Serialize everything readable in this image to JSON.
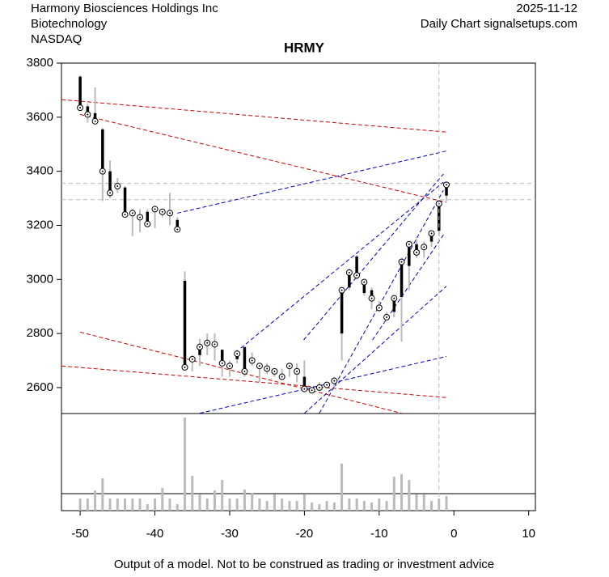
{
  "chart_data": {
    "type": "ohlc",
    "title": "HRMY",
    "company": "Harmony Biosciences Holdings Inc",
    "sector": "Biotechnology",
    "exchange": "NASDAQ",
    "date": "2025-11-12",
    "source": "Daily Chart signalsetups.com",
    "footer": "Output of a model. Not to be construed as trading or investment advice",
    "x": [
      -50,
      -49,
      -48,
      -47,
      -46,
      -45,
      -44,
      -43,
      -42,
      -41,
      -40,
      -39,
      -38,
      -37,
      -36,
      -35,
      -34,
      -33,
      -32,
      -31,
      -30,
      -29,
      -28,
      -27,
      -26,
      -25,
      -24,
      -23,
      -22,
      -21,
      -20,
      -19,
      -18,
      -17,
      -16,
      -15,
      -14,
      -13,
      -12,
      -11,
      -10,
      -9,
      -8,
      -7,
      -6,
      -5,
      -4,
      -3,
      -2,
      -1
    ],
    "open": [
      3750,
      3640,
      3615,
      3555,
      3400,
      3345,
      3340,
      3250,
      3240,
      3250,
      3260,
      3250,
      3245,
      3220,
      2995,
      2700,
      2720,
      2770,
      2760,
      2740,
      2680,
      2705,
      2750,
      2700,
      2680,
      2670,
      2660,
      2640,
      2680,
      2660,
      2640,
      2590,
      2600,
      2610,
      2620,
      2800,
      2970,
      3085,
      2950,
      2960,
      2895,
      2860,
      2880,
      2935,
      3050,
      3130,
      3130,
      3140,
      3180,
      3310
    ],
    "high": [
      3755,
      3650,
      3710,
      3560,
      3440,
      3375,
      3345,
      3260,
      3260,
      3260,
      3270,
      3260,
      3320,
      3230,
      3030,
      2720,
      2780,
      2800,
      2800,
      2740,
      2700,
      2740,
      2750,
      2730,
      2690,
      2690,
      2670,
      2670,
      2690,
      2690,
      2700,
      2600,
      2620,
      2620,
      2640,
      2960,
      3040,
      3090,
      3000,
      2970,
      2920,
      2880,
      2940,
      3080,
      3140,
      3150,
      3140,
      3180,
      3290,
      3360
    ],
    "low": [
      3625,
      3580,
      3575,
      3290,
      3300,
      3320,
      3230,
      3160,
      3175,
      3200,
      3190,
      3230,
      3200,
      3180,
      2665,
      2660,
      2680,
      2720,
      2700,
      2640,
      2640,
      2690,
      2640,
      2680,
      2620,
      2650,
      2640,
      2630,
      2640,
      2620,
      2590,
      2580,
      2590,
      2600,
      2600,
      2700,
      2960,
      3000,
      2940,
      2890,
      2880,
      2850,
      2860,
      2770,
      2960,
      3080,
      3080,
      3120,
      3160,
      3290
    ],
    "close": [
      3635,
      3610,
      3585,
      3400,
      3320,
      3345,
      3240,
      3245,
      3230,
      3205,
      3260,
      3250,
      3245,
      3185,
      2675,
      2705,
      2750,
      2765,
      2760,
      2690,
      2680,
      2725,
      2660,
      2700,
      2680,
      2670,
      2660,
      2640,
      2680,
      2660,
      2595,
      2590,
      2600,
      2610,
      2625,
      2960,
      3025,
      3015,
      2990,
      2930,
      2895,
      2860,
      2930,
      3065,
      3130,
      3100,
      3120,
      3170,
      3280,
      3350
    ],
    "volume": [
      15,
      15,
      25,
      40,
      15,
      15,
      15,
      15,
      15,
      8,
      15,
      28,
      15,
      8,
      115,
      43,
      20,
      15,
      25,
      38,
      15,
      15,
      26,
      22,
      15,
      12,
      20,
      15,
      12,
      12,
      20,
      10,
      8,
      12,
      10,
      58,
      15,
      15,
      12,
      10,
      15,
      12,
      42,
      45,
      38,
      20,
      20,
      12,
      15,
      18
    ],
    "volume_lim": [
      0,
      120
    ],
    "xlim": [
      -52.5,
      10.9
    ],
    "ylim": [
      2504,
      3800
    ],
    "xticks": [
      -50,
      -40,
      -30,
      -20,
      -10,
      0,
      10
    ],
    "yticks": [
      2600,
      2800,
      3000,
      3200,
      3400,
      3600,
      3800
    ],
    "trend_lines": [
      {
        "color": "#cc0000",
        "x": [
          -52.5,
          -1
        ],
        "y": [
          3665,
          3545
        ]
      },
      {
        "color": "#cc0000",
        "x": [
          -50,
          -1
        ],
        "y": [
          3610,
          3285
        ]
      },
      {
        "color": "#cc0000",
        "x": [
          -50,
          -7
        ],
        "y": [
          2805,
          2505
        ]
      },
      {
        "color": "#cc0000",
        "x": [
          -52.5,
          -1
        ],
        "y": [
          2680,
          2563
        ]
      },
      {
        "color": "#0000cc",
        "x": [
          -37,
          -1
        ],
        "y": [
          3245,
          3475
        ]
      },
      {
        "color": "#0000cc",
        "x": [
          -34,
          -1
        ],
        "y": [
          2505,
          2715
        ]
      },
      {
        "color": "#0000cc",
        "x": [
          -28.5,
          -1.4
        ],
        "y": [
          2746,
          3360
        ]
      },
      {
        "color": "#0000cc",
        "x": [
          -20,
          -1
        ],
        "y": [
          2505,
          2975
        ]
      },
      {
        "color": "#0000cc",
        "x": [
          -20.1,
          -1.4
        ],
        "y": [
          2776,
          3390
        ]
      },
      {
        "color": "#0000cc",
        "x": [
          -18,
          -1.4
        ],
        "y": [
          2505,
          3330
        ]
      },
      {
        "color": "#0000cc",
        "x": [
          -10.9,
          -1.4
        ],
        "y": [
          2776,
          3165
        ]
      }
    ],
    "hlines": [
      3355,
      3295
    ],
    "vline": -2
  }
}
